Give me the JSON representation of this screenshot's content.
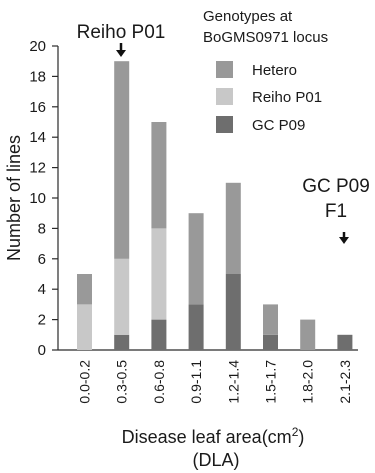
{
  "chart_data": {
    "type": "bar",
    "stacked": true,
    "title": "",
    "categories": [
      "0.0-0.2",
      "0.3-0.5",
      "0.6-0.8",
      "0.9-1.1",
      "1.2-1.4",
      "1.5-1.7",
      "1.8-2.0",
      "2.1-2.3"
    ],
    "series": [
      {
        "name": "GC P09",
        "color": "#6e6e6e",
        "values": [
          0,
          1,
          2,
          3,
          5,
          1,
          0,
          1
        ]
      },
      {
        "name": "Reiho P01",
        "color": "#c8c8c8",
        "values": [
          3,
          5,
          6,
          0,
          0,
          0,
          0,
          0
        ]
      },
      {
        "name": "Hetero",
        "color": "#999999",
        "values": [
          2,
          13,
          7,
          6,
          6,
          2,
          2,
          0
        ]
      }
    ],
    "legend_order": [
      "Hetero",
      "Reiho P01",
      "GC P09"
    ],
    "legend_title": [
      "Genotypes at",
      "BoGMS0971 locus"
    ],
    "legend_position": "top-right",
    "ylabel": "Number of lines",
    "xlabel_line1": "Disease leaf area(cm",
    "xlabel_sup": "2",
    "xlabel_close": ")",
    "xlabel_line2": "(DLA)",
    "ylim": [
      0,
      20
    ],
    "yticks": [
      0,
      2,
      4,
      6,
      8,
      10,
      12,
      14,
      16,
      18,
      20
    ],
    "grid": false,
    "annotations": [
      {
        "text": "Reiho P01",
        "category_index": 1
      },
      {
        "lines": [
          "GC P09",
          "F1"
        ],
        "category_index": 7
      }
    ]
  }
}
